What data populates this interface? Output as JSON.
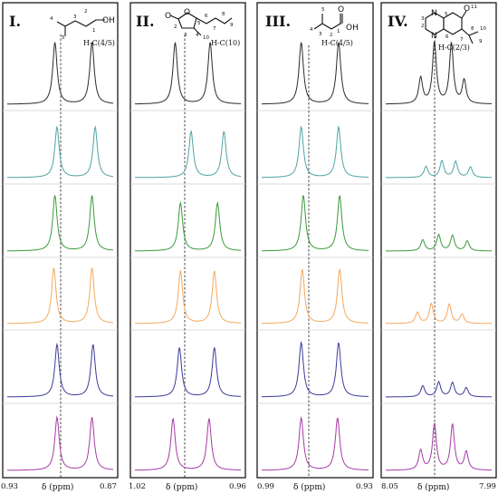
{
  "colors": [
    "#2b2b2b",
    "#4fa3a3",
    "#3a9a3a",
    "#f5a85a",
    "#3a3a9a",
    "#a63aa6"
  ],
  "panels": [
    {
      "roman": "I.",
      "proton_label": "H-C(4/5)",
      "axis_left": "0.93",
      "axis_right": "0.87",
      "axis_label": "δ (ppm)",
      "structure": {
        "atom_oh": "OH",
        "num_1": "1",
        "num_2": "2",
        "num_3": "3",
        "num_4": "4",
        "num_5": "5"
      },
      "peaks": [
        [
          [
            0.45,
            1.0
          ],
          [
            0.8,
            1.0
          ]
        ],
        [
          [
            0.47,
            0.82
          ],
          [
            0.83,
            0.82
          ]
        ],
        [
          [
            0.45,
            0.9
          ],
          [
            0.8,
            0.9
          ]
        ],
        [
          [
            0.44,
            0.9
          ],
          [
            0.8,
            0.9
          ]
        ],
        [
          [
            0.47,
            0.85
          ],
          [
            0.81,
            0.85
          ]
        ],
        [
          [
            0.47,
            0.86
          ],
          [
            0.8,
            0.86
          ]
        ]
      ]
    },
    {
      "roman": "II.",
      "proton_label": "H-C(10)",
      "axis_left": "1.02",
      "axis_right": "0.96",
      "axis_label": "δ (ppm)",
      "structure": {
        "atom_o_ring": "O",
        "atom_o_carbonyl": "O",
        "num_2": "2",
        "num_3": "3",
        "num_4": "4",
        "num_5": "5",
        "num_6": "6",
        "num_7": "7",
        "num_8": "8",
        "num_9": "9",
        "num_10": "10"
      },
      "peaks": [
        [
          [
            0.38,
            1.0
          ],
          [
            0.71,
            1.0
          ]
        ],
        [
          [
            0.53,
            0.75
          ],
          [
            0.84,
            0.75
          ]
        ],
        [
          [
            0.43,
            0.78
          ],
          [
            0.78,
            0.78
          ]
        ],
        [
          [
            0.43,
            0.85
          ],
          [
            0.75,
            0.85
          ]
        ],
        [
          [
            0.42,
            0.8
          ],
          [
            0.75,
            0.8
          ]
        ],
        [
          [
            0.36,
            0.84
          ],
          [
            0.7,
            0.84
          ]
        ]
      ]
    },
    {
      "roman": "III.",
      "proton_label": "H-C(4/5)",
      "axis_left": "0.99",
      "axis_right": "0.93",
      "axis_label": "δ (ppm)",
      "structure": {
        "atom_o": "O",
        "atom_oh": "OH",
        "num_1": "1",
        "num_2": "2",
        "num_3": "3",
        "num_4": "4",
        "num_5": "5"
      },
      "peaks": [
        [
          [
            0.37,
            1.0
          ],
          [
            0.72,
            1.0
          ]
        ],
        [
          [
            0.37,
            0.82
          ],
          [
            0.72,
            0.82
          ]
        ],
        [
          [
            0.39,
            0.9
          ],
          [
            0.73,
            0.9
          ]
        ],
        [
          [
            0.38,
            0.88
          ],
          [
            0.73,
            0.88
          ]
        ],
        [
          [
            0.37,
            0.88
          ],
          [
            0.72,
            0.88
          ]
        ],
        [
          [
            0.37,
            0.85
          ],
          [
            0.71,
            0.85
          ]
        ]
      ]
    },
    {
      "roman": "IV.",
      "proton_label": "H-C(2/3)",
      "axis_left": "8.05",
      "axis_right": "7.99",
      "axis_label": "δ (ppm)",
      "structure": {
        "atom_n1": "N",
        "atom_n4": "N",
        "atom_o": "O",
        "num_2": "2",
        "num_3": "3",
        "num_5": "5",
        "num_6": "6",
        "num_7": "7",
        "num_8": "8",
        "num_9": "9",
        "num_10": "10",
        "num_11": "11"
      },
      "peaks": [
        [
          [
            0.33,
            0.42
          ],
          [
            0.46,
            1.0
          ],
          [
            0.62,
            0.98
          ],
          [
            0.74,
            0.38
          ]
        ],
        [
          [
            0.38,
            0.18
          ],
          [
            0.53,
            0.27
          ],
          [
            0.66,
            0.26
          ],
          [
            0.8,
            0.17
          ]
        ],
        [
          [
            0.35,
            0.18
          ],
          [
            0.5,
            0.26
          ],
          [
            0.63,
            0.25
          ],
          [
            0.77,
            0.16
          ]
        ],
        [
          [
            0.3,
            0.18
          ],
          [
            0.43,
            0.32
          ],
          [
            0.6,
            0.31
          ],
          [
            0.72,
            0.15
          ]
        ],
        [
          [
            0.35,
            0.18
          ],
          [
            0.5,
            0.24
          ],
          [
            0.63,
            0.23
          ],
          [
            0.76,
            0.15
          ]
        ],
        [
          [
            0.33,
            0.32
          ],
          [
            0.46,
            0.75
          ],
          [
            0.63,
            0.74
          ],
          [
            0.76,
            0.3
          ]
        ]
      ]
    }
  ]
}
